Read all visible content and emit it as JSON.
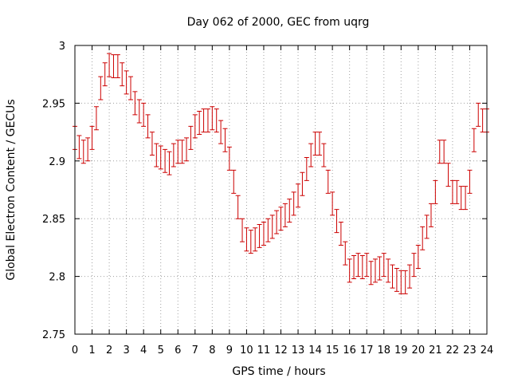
{
  "chart_data": {
    "type": "scatter",
    "title": "Day 062 of 2000, GEC from uqrg",
    "xlabel": "GPS time / hours",
    "ylabel": "Global Electron Content / GECUs",
    "xlim": [
      0,
      24
    ],
    "ylim": [
      2.75,
      3.0
    ],
    "xticks": [
      "0",
      "1",
      "2",
      "3",
      "4",
      "5",
      "6",
      "7",
      "8",
      "9",
      "10",
      "11",
      "12",
      "13",
      "14",
      "15",
      "16",
      "17",
      "18",
      "19",
      "20",
      "21",
      "22",
      "23",
      "24"
    ],
    "yticks": [
      "2.75",
      "2.8",
      "2.85",
      "2.9",
      "2.95",
      "3"
    ],
    "grid": true,
    "error_bar_halfwidth": 0.01,
    "color": "#cc0000",
    "series": [
      {
        "x": [
          0,
          0.25,
          0.5,
          0.75,
          1,
          1.25,
          1.5,
          1.75,
          2,
          2.25,
          2.5,
          2.75,
          3,
          3.25,
          3.5,
          3.75,
          4,
          4.25,
          4.5,
          4.75,
          5,
          5.25,
          5.5,
          5.75,
          6,
          6.25,
          6.5,
          6.75,
          7,
          7.25,
          7.5,
          7.75,
          8,
          8.25,
          8.5,
          8.75,
          9,
          9.25,
          9.5,
          9.75,
          10,
          10.25,
          10.5,
          10.75,
          11,
          11.25,
          11.5,
          11.75,
          12,
          12.25,
          12.5,
          12.75,
          13,
          13.25,
          13.5,
          13.75,
          14,
          14.25,
          14.5,
          14.75,
          15,
          15.25,
          15.5,
          15.75,
          16,
          16.25,
          16.5,
          16.75,
          17,
          17.25,
          17.5,
          17.75,
          18,
          18.25,
          18.5,
          18.75,
          19,
          19.25,
          19.5,
          19.75,
          20,
          20.25,
          20.5,
          20.75,
          21,
          21.25,
          21.5,
          21.75,
          22,
          22.25,
          22.5,
          22.75,
          23,
          23.25,
          23.5,
          23.75,
          24
        ],
        "y": [
          2.92,
          2.912,
          2.908,
          2.91,
          2.92,
          2.937,
          2.963,
          2.975,
          2.983,
          2.982,
          2.982,
          2.975,
          2.968,
          2.963,
          2.95,
          2.943,
          2.94,
          2.93,
          2.915,
          2.905,
          2.903,
          2.9,
          2.898,
          2.905,
          2.908,
          2.908,
          2.91,
          2.92,
          2.93,
          2.933,
          2.935,
          2.935,
          2.937,
          2.935,
          2.925,
          2.918,
          2.902,
          2.882,
          2.86,
          2.84,
          2.832,
          2.83,
          2.832,
          2.835,
          2.837,
          2.84,
          2.843,
          2.847,
          2.85,
          2.853,
          2.857,
          2.863,
          2.87,
          2.88,
          2.893,
          2.905,
          2.915,
          2.915,
          2.905,
          2.882,
          2.863,
          2.848,
          2.837,
          2.82,
          2.805,
          2.808,
          2.81,
          2.808,
          2.81,
          2.803,
          2.805,
          2.807,
          2.81,
          2.805,
          2.8,
          2.797,
          2.795,
          2.795,
          2.8,
          2.81,
          2.817,
          2.833,
          2.843,
          2.853,
          2.873,
          2.908,
          2.908,
          2.888,
          2.873,
          2.873,
          2.868,
          2.868,
          2.882,
          2.918,
          2.94,
          2.935,
          2.935
        ]
      }
    ]
  }
}
